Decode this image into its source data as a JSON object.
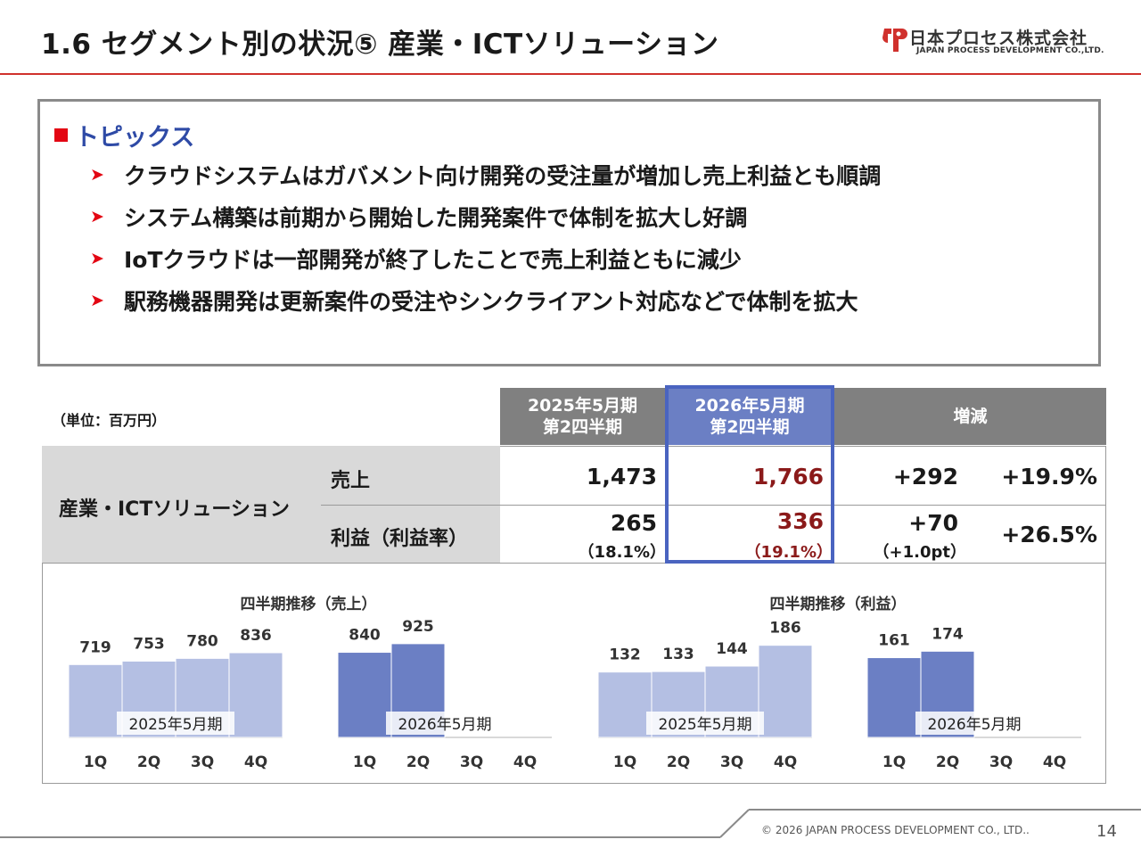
{
  "header": {
    "title": "1.6  セグメント別の状況⑤  産業・ICTソリューション",
    "logo_jp": "日本プロセス株式会社",
    "logo_en": "JAPAN PROCESS DEVELOPMENT CO.,LTD."
  },
  "topics": {
    "heading": "トピックス",
    "items": [
      "クラウドシステムはガバメント向け開発の受注量が増加し売上利益とも順調",
      "システム構築は前期から開始した開発案件で体制を拡大し好調",
      "IoTクラウドは一部開発が終了したことで売上利益ともに減少",
      "駅務機器開発は更新案件の受注やシンクライアント対応などで体制を拡大"
    ]
  },
  "table": {
    "unit": "（単位：百万円）",
    "col_prev_1": "2025年5月期",
    "col_prev_2": "第2四半期",
    "col_cur_1": "2026年5月期",
    "col_cur_2": "第2四半期",
    "col_diff": "増減",
    "segment": "産業・ICTソリューション",
    "row_sales_label": "売上",
    "row_profit_label": "利益（利益率）",
    "sales_prev": "1,473",
    "sales_cur": "1,766",
    "sales_diff": "+292",
    "sales_pct": "+19.9%",
    "profit_prev": "265",
    "profit_prev_rate": "（18.1%）",
    "profit_cur": "336",
    "profit_cur_rate": "（19.1%）",
    "profit_diff": "+70",
    "profit_diff_pt": "（+1.0pt）",
    "profit_pct": "+26.5%"
  },
  "chart_data": [
    {
      "type": "bar",
      "title": "四半期推移（売上）",
      "categories": [
        "1Q",
        "2Q",
        "3Q",
        "4Q"
      ],
      "series": [
        {
          "name": "2025年5月期",
          "values": [
            719,
            753,
            780,
            836
          ]
        },
        {
          "name": "2026年5月期",
          "values": [
            840,
            925,
            null,
            null
          ]
        }
      ],
      "ylim": [
        0,
        1100
      ]
    },
    {
      "type": "bar",
      "title": "四半期推移（利益）",
      "categories": [
        "1Q",
        "2Q",
        "3Q",
        "4Q"
      ],
      "series": [
        {
          "name": "2025年5月期",
          "values": [
            132,
            133,
            144,
            186
          ]
        },
        {
          "name": "2026年5月期",
          "values": [
            161,
            174,
            null,
            null
          ]
        }
      ],
      "ylim": [
        0,
        225
      ]
    }
  ],
  "colors": {
    "accent_red": "#d0312d",
    "bar_prev": "#b4bfe3",
    "bar_cur": "#6b7fc4",
    "highlight": "#4a64c0"
  },
  "footer": {
    "copyright": "© 2026 JAPAN PROCESS DEVELOPMENT CO., LTD..",
    "page": "14"
  }
}
